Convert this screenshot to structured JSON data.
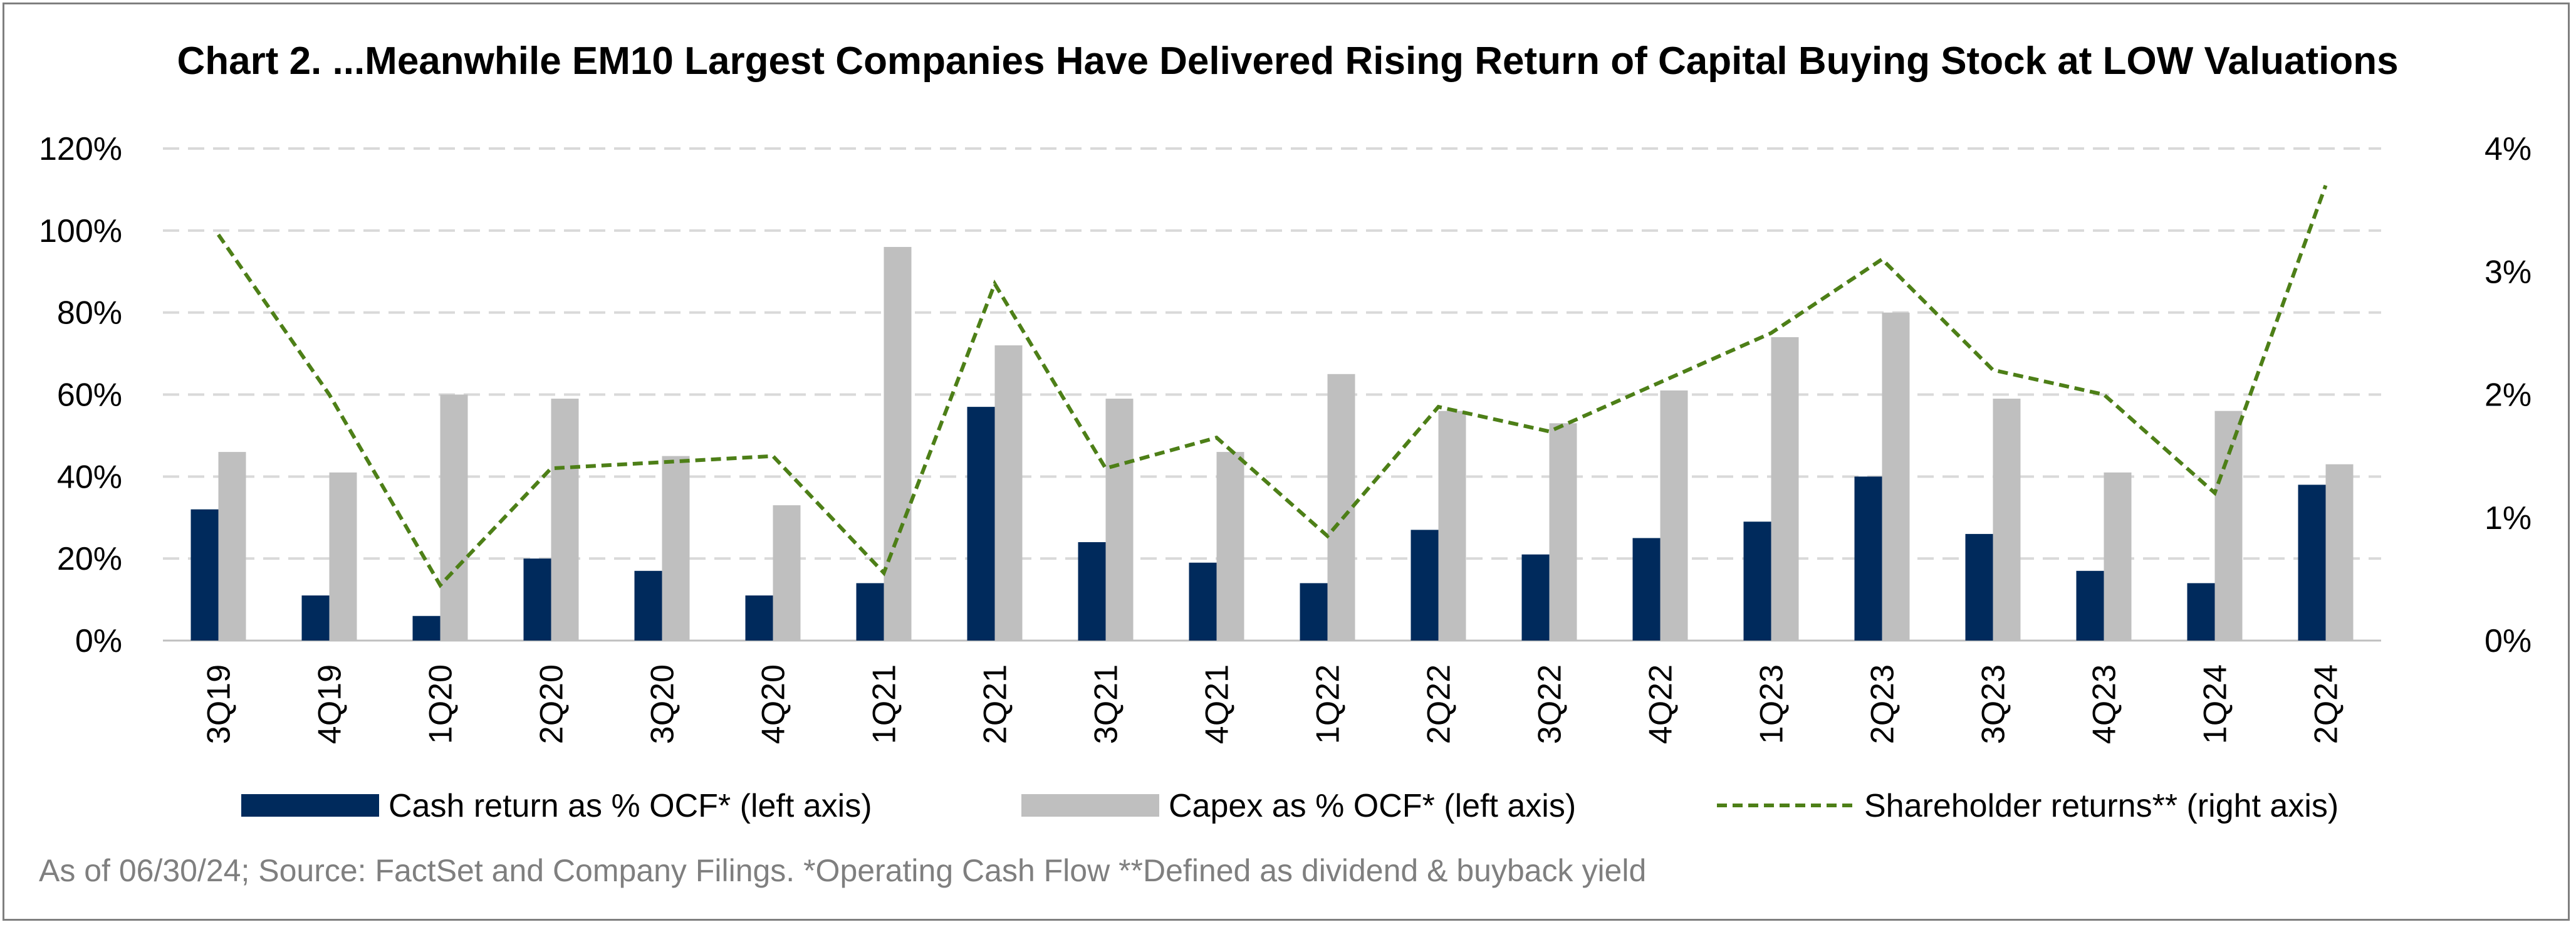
{
  "chart_data": {
    "type": "bar",
    "title": "Chart 2. ...Meanwhile EM10 Largest Companies Have Delivered Rising Return of Capital Buying Stock at LOW Valuations",
    "categories": [
      "3Q19",
      "4Q19",
      "1Q20",
      "2Q20",
      "3Q20",
      "4Q20",
      "1Q21",
      "2Q21",
      "3Q21",
      "4Q21",
      "1Q22",
      "2Q22",
      "3Q22",
      "4Q22",
      "1Q23",
      "2Q23",
      "3Q23",
      "4Q23",
      "1Q24",
      "2Q24"
    ],
    "series": [
      {
        "name": "Cash return as % OCF* (left axis)",
        "axis": "left",
        "kind": "bar",
        "color": "#002a5c",
        "values": [
          32,
          11,
          6,
          20,
          17,
          11,
          14,
          57,
          24,
          19,
          14,
          27,
          21,
          25,
          29,
          40,
          26,
          17,
          14,
          38
        ]
      },
      {
        "name": "Capex as % OCF* (left axis)",
        "axis": "left",
        "kind": "bar",
        "color": "#bfbfbf",
        "values": [
          46,
          41,
          60,
          59,
          45,
          33,
          96,
          72,
          59,
          46,
          65,
          56,
          53,
          61,
          74,
          80,
          59,
          41,
          56,
          43
        ]
      },
      {
        "name": "Shareholder returns** (right axis)",
        "axis": "right",
        "kind": "line",
        "color": "#4d7f17",
        "values": [
          3.3,
          2.0,
          0.45,
          1.4,
          1.45,
          1.5,
          0.55,
          2.9,
          1.4,
          1.65,
          0.85,
          1.9,
          1.7,
          2.1,
          2.5,
          3.1,
          2.2,
          2.0,
          1.2,
          3.7
        ]
      }
    ],
    "left_axis": {
      "min": 0,
      "max": 120,
      "ticks": [
        "0%",
        "20%",
        "40%",
        "60%",
        "80%",
        "100%",
        "120%"
      ]
    },
    "right_axis": {
      "min": 0,
      "max": 4,
      "ticks": [
        "0%",
        "1%",
        "2%",
        "3%",
        "4%"
      ]
    },
    "grid": true,
    "legend_position": "bottom"
  },
  "source_note": "As of 06/30/24; Source: FactSet and Company Filings.  *Operating Cash Flow  **Defined as dividend & buyback yield"
}
